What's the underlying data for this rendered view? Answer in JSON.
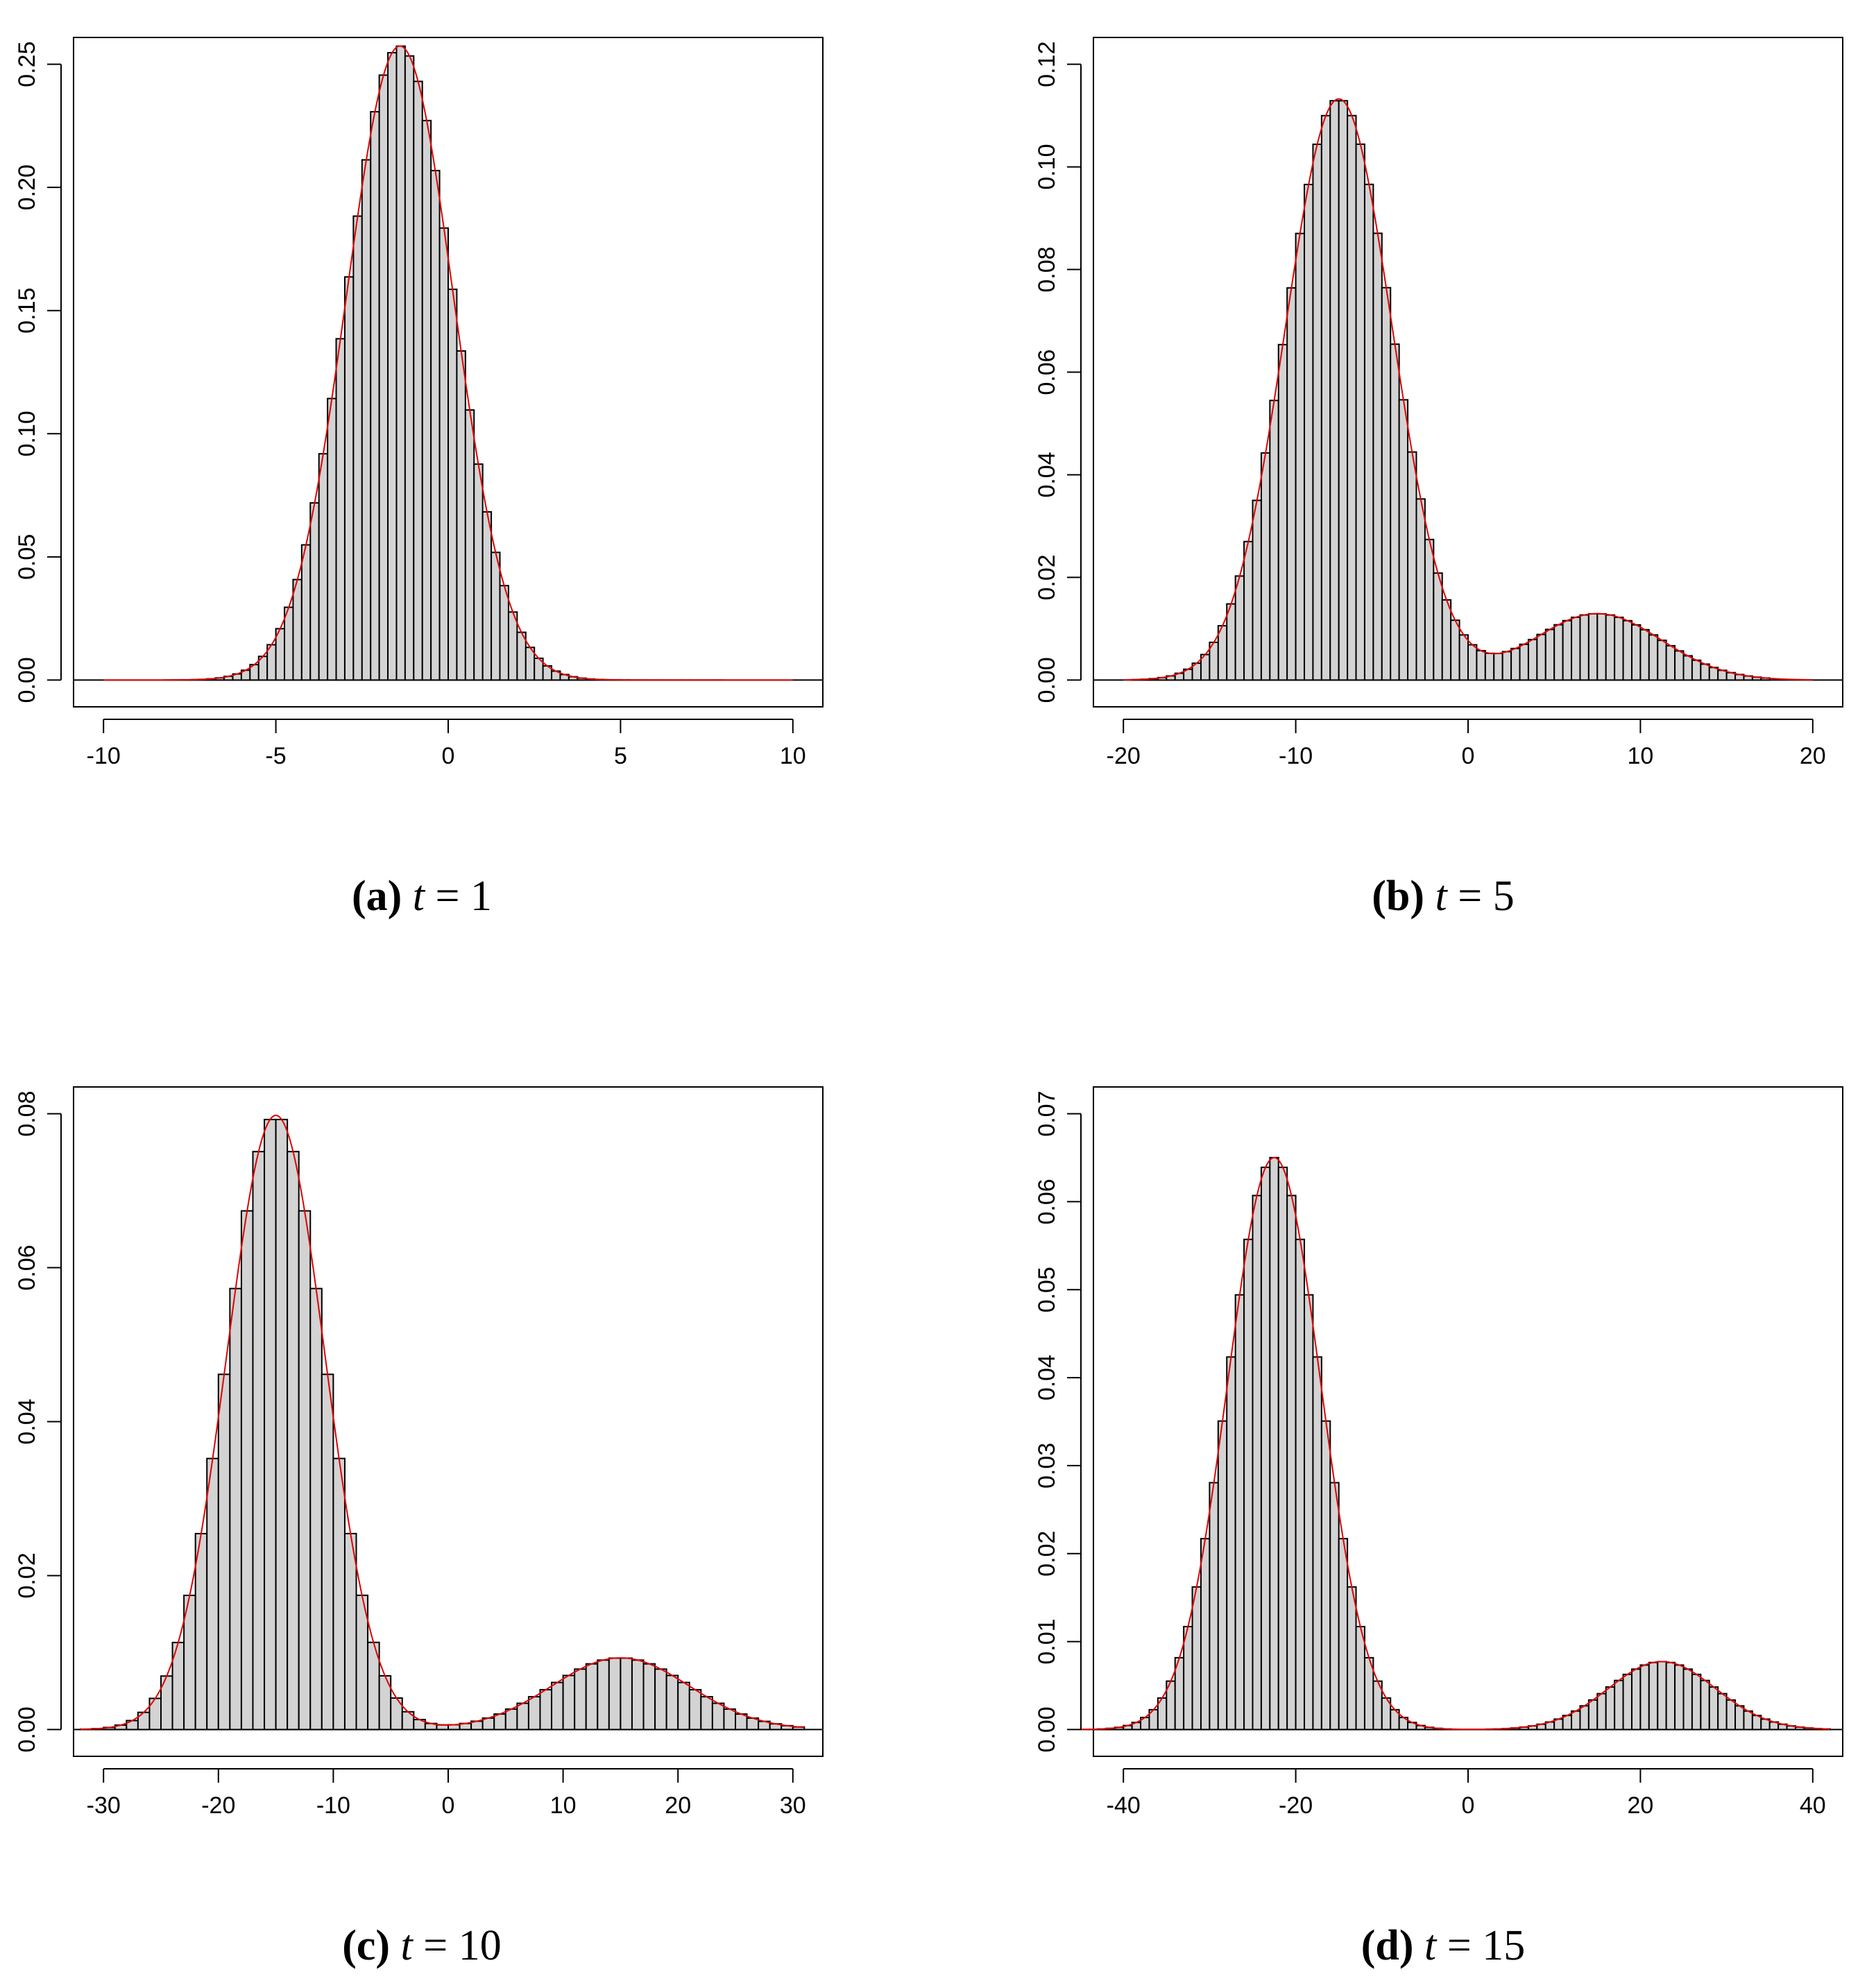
{
  "chart_data": [
    {
      "type": "bar",
      "panel": "a",
      "caption": {
        "label": "(a)",
        "variable": "t",
        "value": "1"
      },
      "xlim": [
        -10,
        10
      ],
      "ylim": [
        0,
        0.25
      ],
      "xticks": [
        -10,
        -5,
        0,
        5,
        10
      ],
      "xtick_labels": [
        "-10",
        "-5",
        "0",
        "5",
        "10"
      ],
      "yticks": [
        0,
        0.05,
        0.1,
        0.15,
        0.2,
        0.25
      ],
      "ytick_labels": [
        "0.00",
        "0.05",
        "0.10",
        "0.15",
        "0.20",
        "0.25"
      ],
      "bin_width": 0.25,
      "curve_color": "#e00000",
      "bar_color": "#d3d3d3",
      "series": [
        {
          "name": "histogram",
          "components": [
            {
              "weight": 1.0,
              "mean": -1.4,
              "sd": 1.55
            }
          ],
          "range": [
            -8.25,
            8.0
          ]
        },
        {
          "name": "density",
          "components": [
            {
              "weight": 1.0,
              "mean": -1.4,
              "sd": 1.55
            }
          ],
          "range": [
            -10,
            10
          ]
        }
      ]
    },
    {
      "type": "bar",
      "panel": "b",
      "caption": {
        "label": "(b)",
        "variable": "t",
        "value": "5"
      },
      "xlim": [
        -20,
        20
      ],
      "ylim": [
        0,
        0.12
      ],
      "xticks": [
        -20,
        -10,
        0,
        10,
        20
      ],
      "xtick_labels": [
        "-20",
        "-10",
        "0",
        "10",
        "20"
      ],
      "yticks": [
        0,
        0.02,
        0.04,
        0.06,
        0.08,
        0.1,
        0.12
      ],
      "ytick_labels": [
        "0.00",
        "0.02",
        "0.04",
        "0.06",
        "0.08",
        "0.10",
        "0.12"
      ],
      "bin_width": 0.5,
      "curve_color": "#e00000",
      "bar_color": "#d3d3d3",
      "series": [
        {
          "name": "histogram",
          "components": [
            {
              "weight": 0.88,
              "mean": -7.5,
              "sd": 3.1
            },
            {
              "weight": 0.12,
              "mean": 7.5,
              "sd": 3.7
            }
          ],
          "range": [
            -19.5,
            17.5
          ]
        },
        {
          "name": "density",
          "components": [
            {
              "weight": 0.88,
              "mean": -7.5,
              "sd": 3.1
            },
            {
              "weight": 0.12,
              "mean": 7.5,
              "sd": 3.7
            }
          ],
          "range": [
            -20,
            20
          ]
        }
      ]
    },
    {
      "type": "bar",
      "panel": "c",
      "caption": {
        "label": "(c)",
        "variable": "t",
        "value": "10"
      },
      "xlim": [
        -30,
        30
      ],
      "ylim": [
        0,
        0.08
      ],
      "xticks": [
        -30,
        -20,
        -10,
        0,
        10,
        20,
        30
      ],
      "xtick_labels": [
        "-30",
        "-20",
        "-10",
        "0",
        "10",
        "20",
        "30"
      ],
      "yticks": [
        0,
        0.02,
        0.04,
        0.06,
        0.08
      ],
      "ytick_labels": [
        "0.00",
        "0.02",
        "0.04",
        "0.06",
        "0.08"
      ],
      "bin_width": 1,
      "curve_color": "#e00000",
      "bar_color": "#d3d3d3",
      "series": [
        {
          "name": "histogram",
          "components": [
            {
              "weight": 0.86,
              "mean": -15.0,
              "sd": 4.3
            },
            {
              "weight": 0.14,
              "mean": 15.0,
              "sd": 6.0
            }
          ],
          "range": [
            -32,
            31
          ]
        },
        {
          "name": "density",
          "components": [
            {
              "weight": 0.86,
              "mean": -15.0,
              "sd": 4.3
            },
            {
              "weight": 0.14,
              "mean": 15.0,
              "sd": 6.0
            }
          ],
          "range": [
            -32,
            31
          ]
        }
      ]
    },
    {
      "type": "bar",
      "panel": "d",
      "caption": {
        "label": "(d)",
        "variable": "t",
        "value": "15"
      },
      "xlim": [
        -40,
        40
      ],
      "ylim": [
        0,
        0.07
      ],
      "xticks": [
        -40,
        -20,
        0,
        20,
        40
      ],
      "xtick_labels": [
        "-40",
        "-20",
        "0",
        "20",
        "40"
      ],
      "yticks": [
        0,
        0.01,
        0.02,
        0.03,
        0.04,
        0.05,
        0.06,
        0.07
      ],
      "ytick_labels": [
        "0.00",
        "0.01",
        "0.02",
        "0.03",
        "0.04",
        "0.05",
        "0.06",
        "0.07"
      ],
      "bin_width": 1,
      "curve_color": "#e00000",
      "bar_color": "#d3d3d3",
      "series": [
        {
          "name": "histogram",
          "components": [
            {
              "weight": 0.88,
              "mean": -22.5,
              "sd": 5.4
            },
            {
              "weight": 0.12,
              "mean": 22.5,
              "sd": 6.2
            }
          ],
          "range": [
            -45,
            42
          ]
        },
        {
          "name": "density",
          "components": [
            {
              "weight": 0.88,
              "mean": -22.5,
              "sd": 5.4
            },
            {
              "weight": 0.12,
              "mean": 22.5,
              "sd": 6.2
            }
          ],
          "range": [
            -45,
            42
          ]
        }
      ]
    }
  ]
}
